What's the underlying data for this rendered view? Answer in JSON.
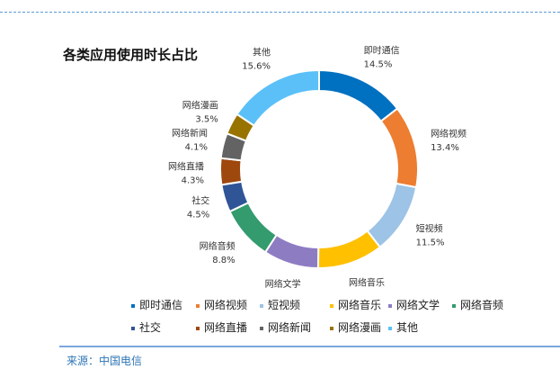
{
  "chart_data": {
    "type": "pie",
    "donut": true,
    "title": "各类应用使用时长占比",
    "legend_position": "bottom",
    "slices": [
      {
        "label": "即时通信",
        "value": 14.5,
        "display": "14.5%",
        "color": "#0070c0"
      },
      {
        "label": "网络视频",
        "value": 13.4,
        "display": "13.4%",
        "color": "#ed7d31"
      },
      {
        "label": "短视频",
        "value": 11.5,
        "display": "11.5%",
        "color": "#9dc3e6"
      },
      {
        "label": "网络音乐",
        "value": 10.7,
        "display": "10.7%",
        "color": "#ffc000"
      },
      {
        "label": "网络文学",
        "value": 9.0,
        "display": "9.0%",
        "color": "#8e7cc3"
      },
      {
        "label": "网络音频",
        "value": 8.8,
        "display": "8.8%",
        "color": "#339b6e"
      },
      {
        "label": "社交",
        "value": 4.5,
        "display": "4.5%",
        "color": "#2f5597"
      },
      {
        "label": "网络直播",
        "value": 4.3,
        "display": "4.3%",
        "color": "#9e480e"
      },
      {
        "label": "网络新闻",
        "value": 4.1,
        "display": "4.1%",
        "color": "#636363"
      },
      {
        "label": "网络漫画",
        "value": 3.5,
        "display": "3.5%",
        "color": "#997300"
      },
      {
        "label": "其他",
        "value": 15.6,
        "display": "15.6%",
        "color": "#5bc0f8"
      }
    ]
  },
  "source": "来源：中国电信"
}
